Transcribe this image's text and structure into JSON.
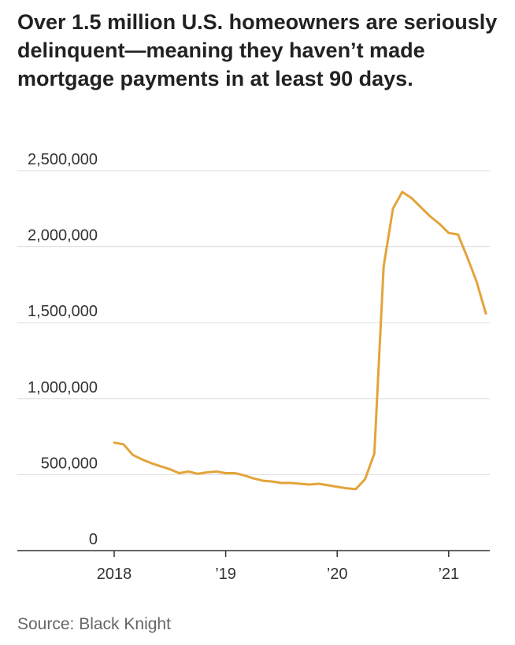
{
  "chart_data": {
    "type": "line",
    "title": "Over 1.5 million U.S. homeowners are seriously delinquent—meaning they haven’t made mortgage payments in at least 90 days.",
    "source": "Source: Black Knight",
    "xlabel": "",
    "ylabel": "",
    "x_ticks": [
      {
        "value": "2018-01",
        "label": "2018"
      },
      {
        "value": "2019-01",
        "label": "’19"
      },
      {
        "value": "2020-01",
        "label": "’20"
      },
      {
        "value": "2021-01",
        "label": "’21"
      }
    ],
    "y_ticks": [
      {
        "value": 0,
        "label": "0"
      },
      {
        "value": 500000,
        "label": "500,000"
      },
      {
        "value": 1000000,
        "label": "1,000,000"
      },
      {
        "value": 1500000,
        "label": "1,500,000"
      },
      {
        "value": 2000000,
        "label": "2,000,000"
      },
      {
        "value": 2500000,
        "label": "2,500,000"
      }
    ],
    "xlim": [
      "2017-07",
      "2021-07"
    ],
    "ylim": [
      0,
      2500000
    ],
    "grid": true,
    "color": "#E3A43A",
    "series": [
      {
        "x": [
          "2018-01",
          "2018-02",
          "2018-03",
          "2018-04",
          "2018-05",
          "2018-06",
          "2018-07",
          "2018-08",
          "2018-09",
          "2018-10",
          "2018-11",
          "2018-12",
          "2019-01",
          "2019-02",
          "2019-03",
          "2019-04",
          "2019-05",
          "2019-06",
          "2019-07",
          "2019-08",
          "2019-09",
          "2019-10",
          "2019-11",
          "2019-12",
          "2020-01",
          "2020-02",
          "2020-03",
          "2020-04",
          "2020-05",
          "2020-06",
          "2020-07",
          "2020-08",
          "2020-09",
          "2020-10",
          "2020-11",
          "2020-12",
          "2021-01",
          "2021-02",
          "2021-03",
          "2021-04",
          "2021-05"
        ],
        "values": [
          710000,
          700000,
          630000,
          600000,
          575000,
          555000,
          535000,
          510000,
          520000,
          505000,
          515000,
          520000,
          510000,
          510000,
          495000,
          475000,
          460000,
          455000,
          445000,
          445000,
          440000,
          435000,
          440000,
          430000,
          420000,
          410000,
          405000,
          470000,
          640000,
          1870000,
          2250000,
          2360000,
          2320000,
          2260000,
          2200000,
          2150000,
          2090000,
          2080000,
          1930000,
          1770000,
          1560000
        ]
      }
    ]
  }
}
